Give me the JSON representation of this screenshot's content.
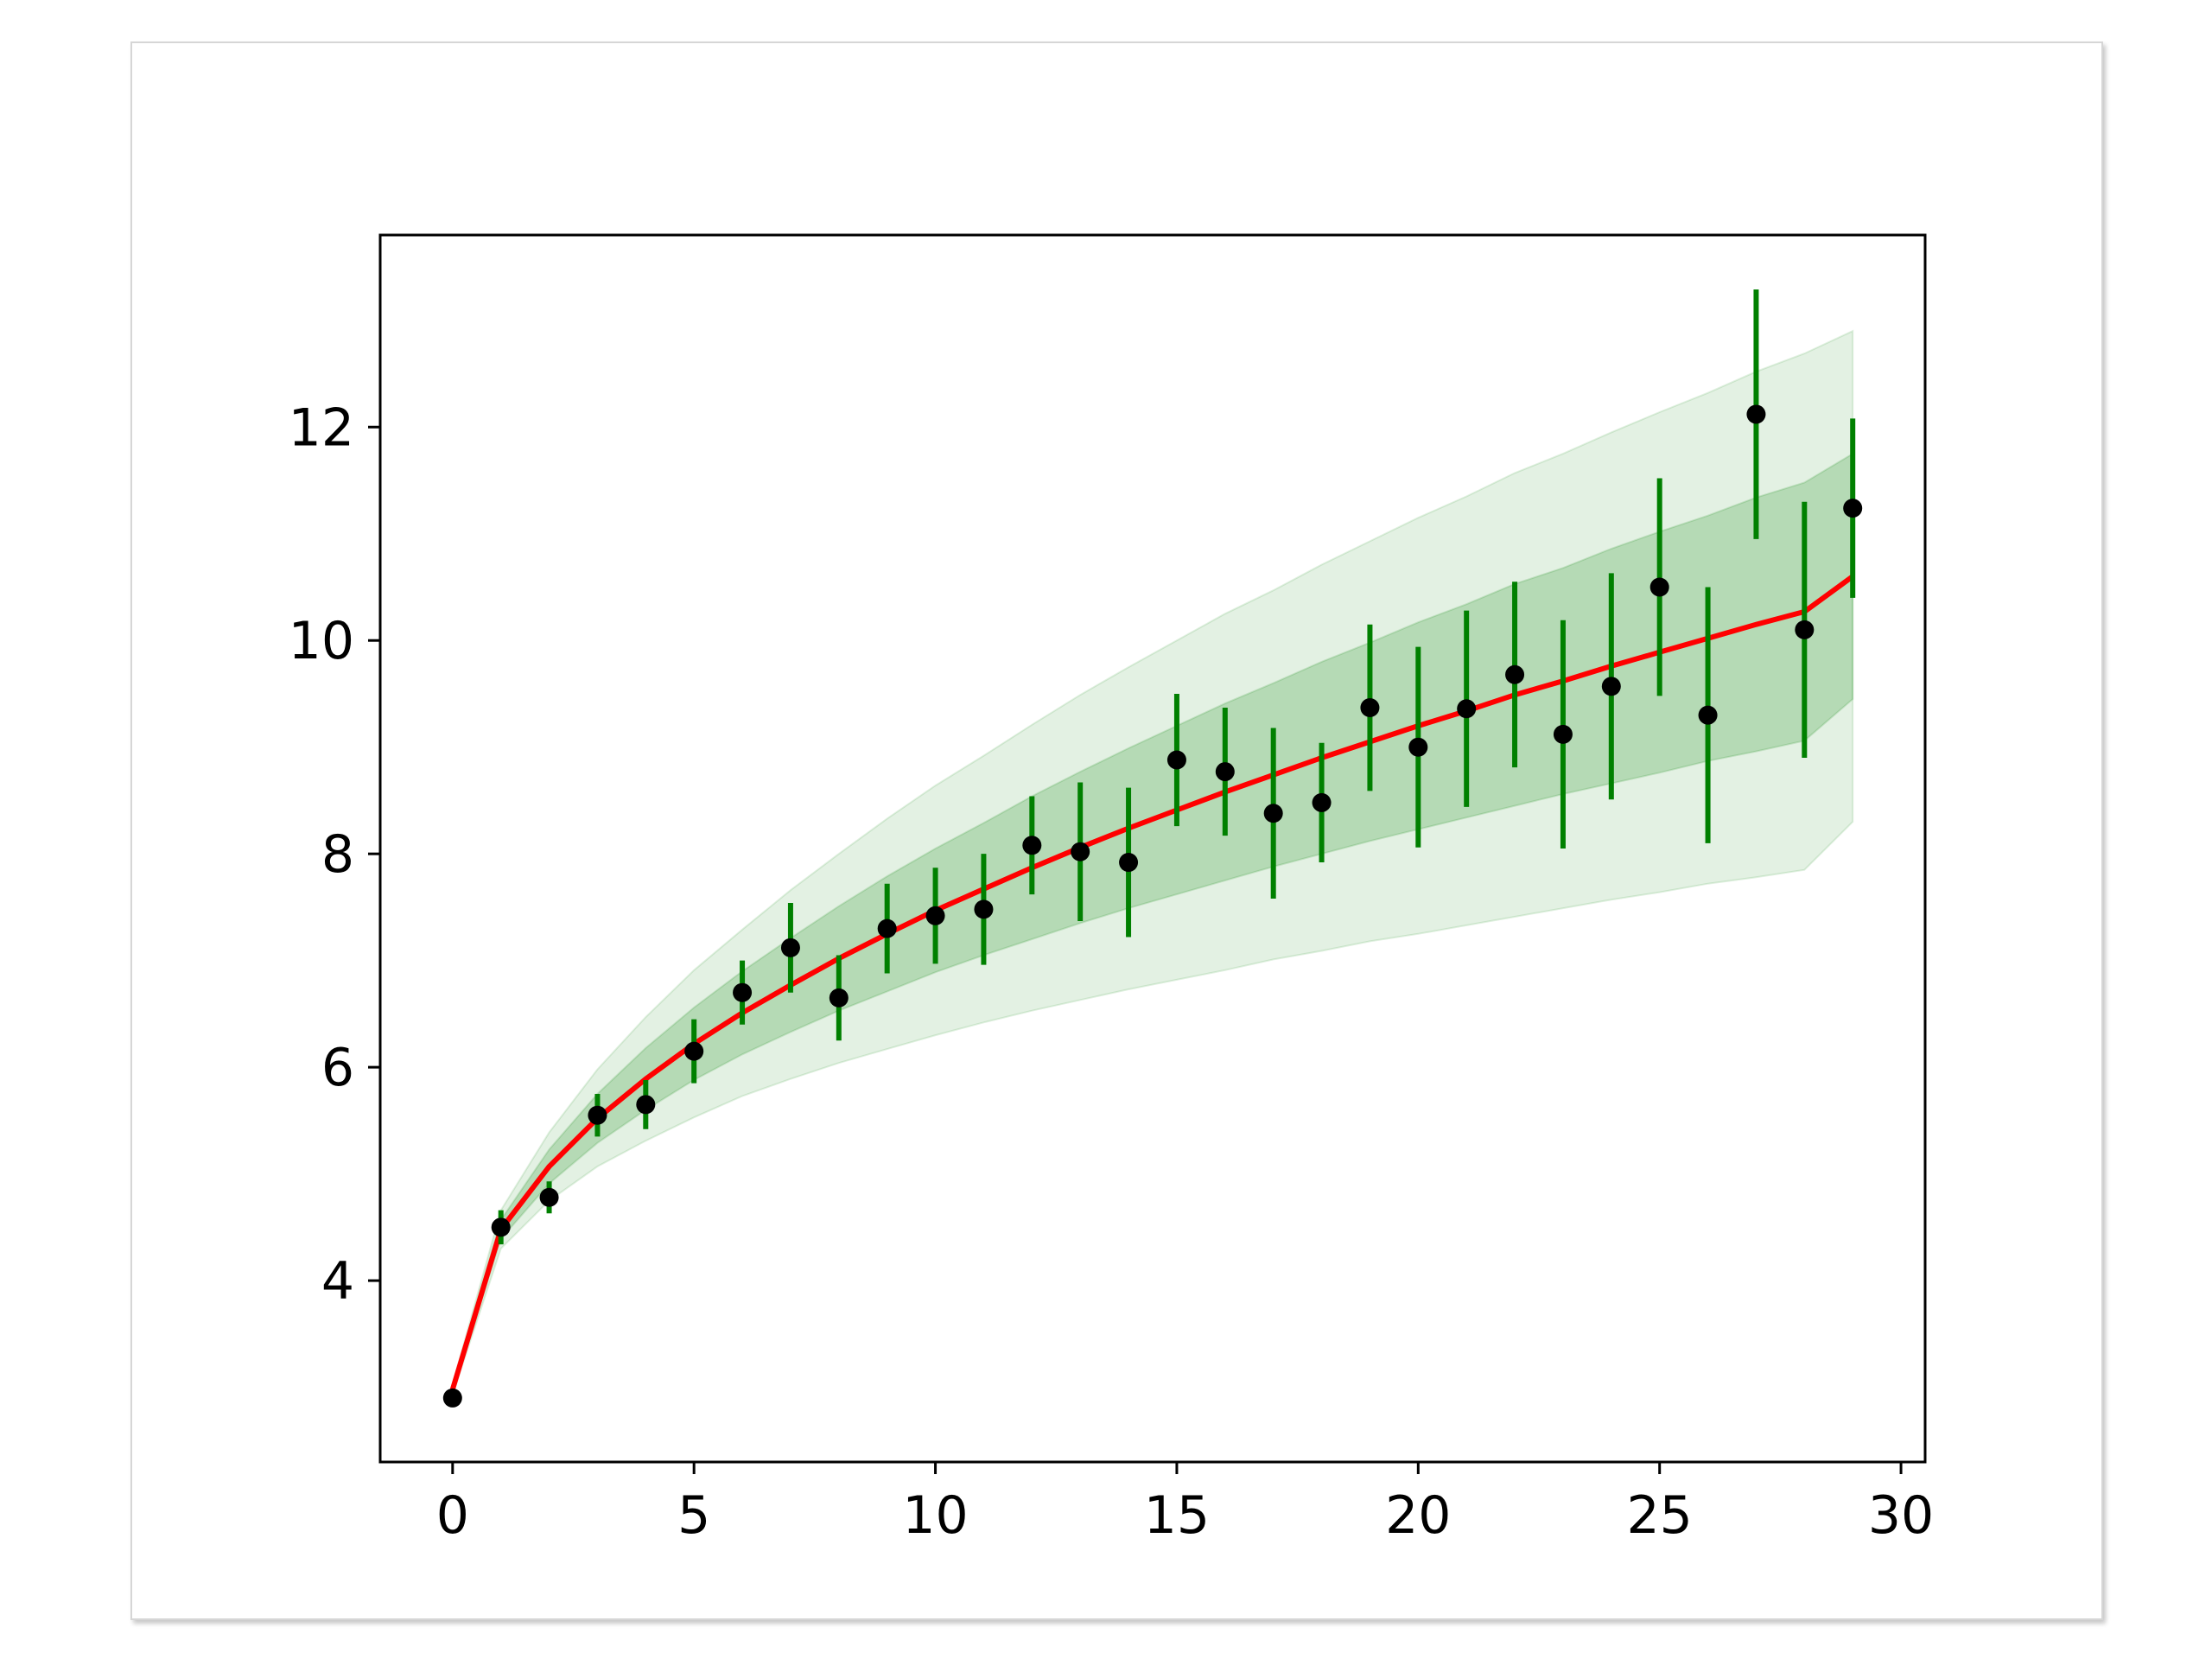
{
  "colors": {
    "fit_line": "#ff0000",
    "error_bars": "#008000",
    "points": "#000000",
    "band_color": "#008000"
  },
  "chart_data": {
    "type": "scatter",
    "title": "",
    "xlabel": "",
    "ylabel": "",
    "xlim": [
      -1.5,
      30.5
    ],
    "ylim": [
      2.3,
      13.8
    ],
    "xticks": [
      0,
      5,
      10,
      15,
      20,
      25,
      30
    ],
    "yticks": [
      4,
      6,
      8,
      10,
      12
    ],
    "grid": false,
    "legend": "none",
    "points": {
      "x": [
        0,
        1,
        2,
        3,
        4,
        5,
        6,
        7,
        8,
        9,
        10,
        11,
        12,
        13,
        14,
        15,
        16,
        17,
        18,
        19,
        20,
        21,
        22,
        23,
        24,
        25,
        26,
        27,
        28,
        29
      ],
      "y": [
        2.9,
        4.5,
        4.78,
        5.55,
        5.65,
        6.15,
        6.7,
        7.12,
        6.65,
        7.3,
        7.42,
        7.48,
        8.08,
        8.02,
        7.92,
        8.88,
        8.77,
        8.38,
        8.48,
        9.37,
        9.0,
        9.36,
        9.68,
        9.12,
        9.57,
        10.5,
        9.3,
        12.12,
        10.1,
        11.24
      ],
      "yerr": [
        0.05,
        0.16,
        0.15,
        0.2,
        0.23,
        0.3,
        0.3,
        0.42,
        0.4,
        0.42,
        0.45,
        0.52,
        0.46,
        0.65,
        0.7,
        0.62,
        0.6,
        0.8,
        0.56,
        0.78,
        0.94,
        0.92,
        0.87,
        1.07,
        1.06,
        1.02,
        1.2,
        1.17,
        1.2,
        0.84
      ]
    },
    "fit_line": {
      "x": [
        0,
        1,
        2,
        3,
        4,
        5,
        6,
        7,
        8,
        9,
        10,
        11,
        12,
        13,
        14,
        15,
        16,
        17,
        18,
        19,
        20,
        21,
        22,
        23,
        24,
        25,
        26,
        27,
        28,
        29
      ],
      "y": [
        2.98,
        4.48,
        5.07,
        5.52,
        5.89,
        6.22,
        6.51,
        6.77,
        7.02,
        7.25,
        7.47,
        7.67,
        7.87,
        8.06,
        8.24,
        8.41,
        8.58,
        8.74,
        8.9,
        9.05,
        9.2,
        9.34,
        9.49,
        9.62,
        9.76,
        9.89,
        10.02,
        10.15,
        10.27,
        10.6
      ]
    },
    "inner_band": {
      "x": [
        0,
        1,
        2,
        3,
        4,
        5,
        6,
        7,
        8,
        9,
        10,
        11,
        12,
        13,
        14,
        15,
        16,
        17,
        18,
        19,
        20,
        21,
        22,
        23,
        24,
        25,
        26,
        27,
        28,
        29
      ],
      "lower": [
        2.96,
        4.39,
        4.91,
        5.29,
        5.6,
        5.88,
        6.12,
        6.33,
        6.53,
        6.71,
        6.89,
        7.05,
        7.2,
        7.35,
        7.49,
        7.62,
        7.75,
        7.88,
        8.0,
        8.12,
        8.23,
        8.34,
        8.45,
        8.56,
        8.66,
        8.76,
        8.87,
        8.96,
        9.06,
        9.45
      ],
      "upper": [
        3.0,
        4.57,
        5.23,
        5.75,
        6.18,
        6.56,
        6.9,
        7.21,
        7.51,
        7.79,
        8.05,
        8.29,
        8.54,
        8.77,
        8.99,
        9.2,
        9.41,
        9.6,
        9.8,
        9.98,
        10.17,
        10.34,
        10.53,
        10.68,
        10.86,
        11.02,
        11.17,
        11.34,
        11.48,
        11.75
      ]
    },
    "outer_band": {
      "x": [
        0,
        1,
        2,
        3,
        4,
        5,
        6,
        7,
        8,
        9,
        10,
        11,
        12,
        13,
        14,
        15,
        16,
        17,
        18,
        19,
        20,
        21,
        22,
        23,
        24,
        25,
        26,
        27,
        28,
        29
      ],
      "lower": [
        2.93,
        4.3,
        4.75,
        5.07,
        5.31,
        5.53,
        5.73,
        5.89,
        6.04,
        6.17,
        6.3,
        6.42,
        6.53,
        6.63,
        6.73,
        6.82,
        6.91,
        7.01,
        7.09,
        7.18,
        7.25,
        7.33,
        7.41,
        7.49,
        7.57,
        7.64,
        7.72,
        7.78,
        7.85,
        8.3
      ],
      "upper": [
        3.03,
        4.66,
        5.39,
        5.98,
        6.47,
        6.91,
        7.29,
        7.66,
        8.0,
        8.33,
        8.64,
        8.92,
        9.21,
        9.49,
        9.75,
        10.0,
        10.25,
        10.47,
        10.71,
        10.93,
        11.15,
        11.35,
        11.57,
        11.75,
        11.95,
        12.14,
        12.32,
        12.52,
        12.69,
        12.9
      ]
    }
  }
}
